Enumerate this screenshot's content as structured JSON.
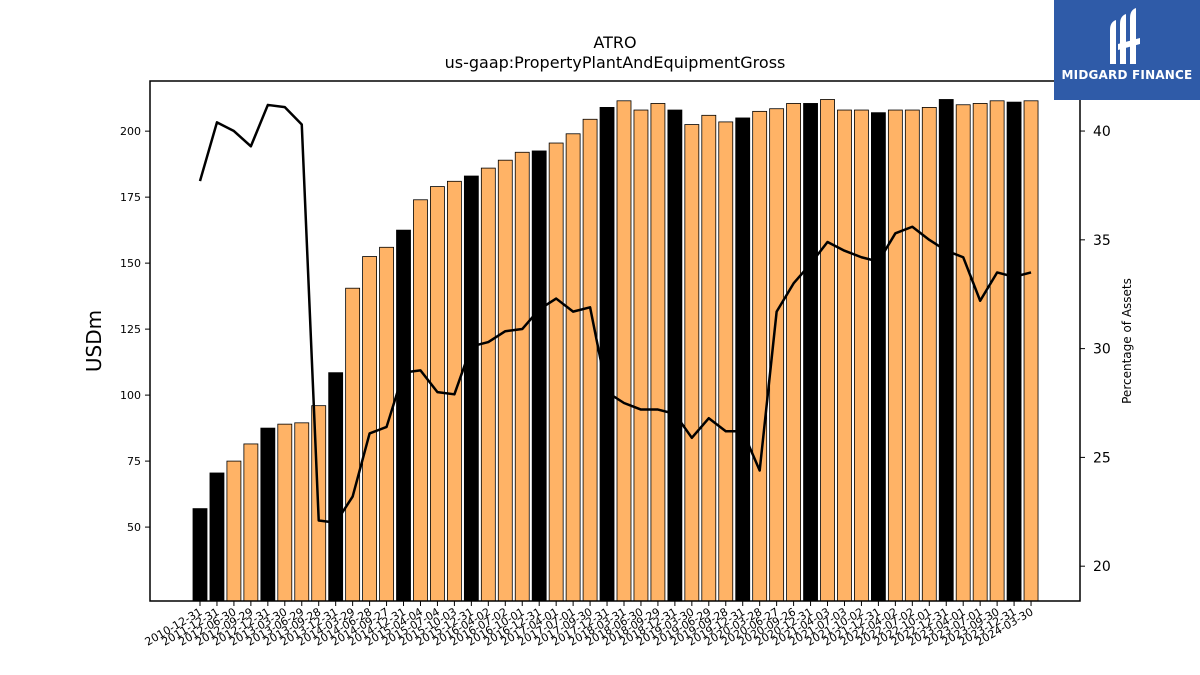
{
  "brand": {
    "name": "MIDGARD FINANCE",
    "bg_color": "#2f5ba8"
  },
  "chart_data": {
    "type": "bar",
    "title": "ATRO",
    "subtitle": "us-gaap:PropertyPlantAndEquipmentGross",
    "ylabel": "USDm",
    "y2label": "Percentage of Assets",
    "ylim": [
      22,
      219
    ],
    "y2lim": [
      18.4,
      42.3
    ],
    "yticks": [
      50,
      75,
      100,
      125,
      150,
      175,
      200
    ],
    "y2ticks": [
      20,
      25,
      30,
      35,
      40
    ],
    "bar_colors": {
      "annual": "#000000",
      "quarter": "#ffb366"
    },
    "line_color": "#000000",
    "categories": [
      "2010-12-31",
      "2011-12-31",
      "2012-06-30",
      "2012-09-29",
      "2012-12-31",
      "2013-03-30",
      "2013-06-29",
      "2013-09-28",
      "2013-12-31",
      "2014-03-29",
      "2014-06-28",
      "2014-09-27",
      "2014-12-31",
      "2015-04-04",
      "2015-07-04",
      "2015-10-03",
      "2015-12-31",
      "2016-04-02",
      "2016-07-02",
      "2016-10-01",
      "2016-12-31",
      "2017-04-01",
      "2017-07-01",
      "2017-09-30",
      "2017-12-31",
      "2018-03-31",
      "2018-06-30",
      "2018-09-29",
      "2018-12-31",
      "2019-03-30",
      "2019-06-29",
      "2019-09-28",
      "2019-12-31",
      "2020-03-28",
      "2020-06-27",
      "2020-09-26",
      "2020-12-31",
      "2021-04-03",
      "2021-07-03",
      "2021-10-02",
      "2021-12-31",
      "2022-04-02",
      "2022-07-02",
      "2022-10-01",
      "2022-12-31",
      "2023-04-01",
      "2023-07-01",
      "2023-09-30",
      "2023-12-31",
      "2024-03-30"
    ],
    "annual": [
      true,
      true,
      false,
      false,
      true,
      false,
      false,
      false,
      true,
      false,
      false,
      false,
      true,
      false,
      false,
      false,
      true,
      false,
      false,
      false,
      true,
      false,
      false,
      false,
      true,
      false,
      false,
      false,
      true,
      false,
      false,
      false,
      true,
      false,
      false,
      false,
      true,
      false,
      false,
      false,
      true,
      false,
      false,
      false,
      true,
      false,
      false,
      false,
      true,
      false
    ],
    "series": [
      {
        "name": "USDm",
        "values": [
          57,
          70.5,
          75,
          81.5,
          87.5,
          89,
          89.5,
          96,
          108.5,
          140.5,
          152.5,
          156,
          162.5,
          174,
          179,
          181,
          183,
          186,
          189,
          192,
          192.5,
          195.5,
          199,
          204.5,
          209,
          211.5,
          208,
          210.5,
          208,
          202.5,
          206,
          203.5,
          205,
          207.5,
          208.5,
          210.5,
          210.5,
          212,
          208,
          208,
          207,
          208,
          208,
          209,
          212,
          210,
          210.5,
          211.5,
          211,
          211.5
        ]
      },
      {
        "name": "Percentage of Assets",
        "axis": "right",
        "values": [
          37.7,
          40.4,
          40.0,
          39.3,
          41.2,
          41.1,
          40.3,
          22.1,
          22.0,
          23.2,
          26.1,
          26.4,
          28.9,
          29.0,
          28.0,
          27.9,
          30.1,
          30.3,
          30.8,
          30.9,
          31.8,
          32.3,
          31.7,
          31.9,
          28.0,
          27.5,
          27.2,
          27.2,
          27.0,
          25.9,
          26.8,
          26.2,
          26.2,
          24.4,
          31.7,
          33.0,
          33.9,
          34.9,
          34.5,
          34.2,
          34.0,
          35.3,
          35.6,
          35.0,
          34.5,
          34.2,
          32.2,
          33.5,
          33.3,
          33.5
        ]
      }
    ]
  }
}
